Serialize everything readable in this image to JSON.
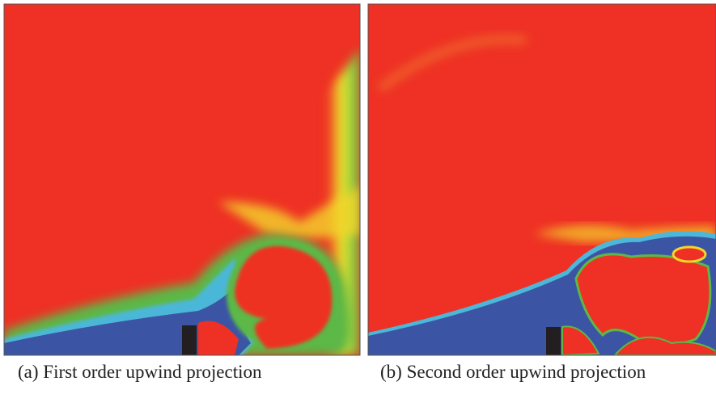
{
  "figures": [
    {
      "caption": "(a) First order upwind projection"
    },
    {
      "caption": "(b) Second order upwind projection"
    }
  ]
}
